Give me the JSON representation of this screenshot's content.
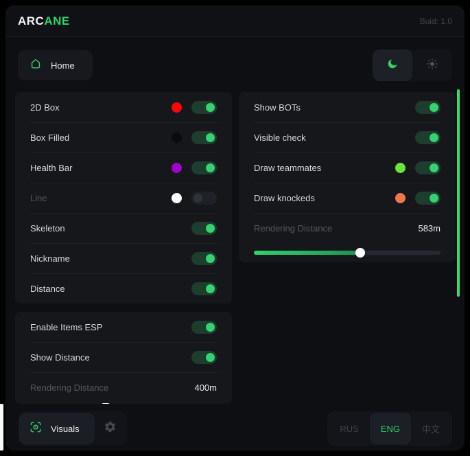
{
  "header": {
    "logo_primary": "ARC",
    "logo_accent": "ANE",
    "build": "Buid: 1.0"
  },
  "nav": {
    "home_label": "Home"
  },
  "accent_color": "#2fd36f",
  "scrollbar_color": "#3dd970",
  "panels": {
    "player_esp": {
      "rows": [
        {
          "label": "2D Box",
          "swatch": "#ff0606",
          "toggle": "on"
        },
        {
          "label": "Box Filled",
          "swatch": "#0b0b0d",
          "toggle": "on"
        },
        {
          "label": "Health Bar",
          "swatch": "#9e00cd",
          "toggle": "on"
        },
        {
          "label": "Line",
          "dim": true,
          "swatch": "#ffffff",
          "toggle": "off"
        },
        {
          "label": "Skeleton",
          "toggle": "on"
        },
        {
          "label": "Nickname",
          "toggle": "on"
        },
        {
          "label": "Distance",
          "toggle": "on"
        }
      ]
    },
    "bots": {
      "rows": [
        {
          "label": "Show BOTs",
          "toggle": "on"
        },
        {
          "label": "Visible check",
          "toggle": "on"
        },
        {
          "label": "Draw teammates",
          "swatch": "#6be33c",
          "toggle": "on"
        },
        {
          "label": "Draw knockeds",
          "swatch": "#f0764d",
          "toggle": "on"
        },
        {
          "label": "Rendering Distance",
          "dim": true,
          "value": "583m"
        },
        {
          "type": "slider",
          "percent": 57
        }
      ]
    },
    "items_esp": {
      "rows": [
        {
          "label": "Enable Items ESP",
          "toggle": "on"
        },
        {
          "label": "Show Distance",
          "toggle": "on"
        },
        {
          "label": "Rendering Distance",
          "dim": true,
          "value": "400m"
        },
        {
          "type": "sliver",
          "percent": 38
        }
      ]
    }
  },
  "footer": {
    "visuals_label": "Visuals",
    "languages": [
      {
        "label": "RUS",
        "active": false
      },
      {
        "label": "ENG",
        "active": true
      },
      {
        "label": "中文",
        "active": false
      }
    ]
  }
}
